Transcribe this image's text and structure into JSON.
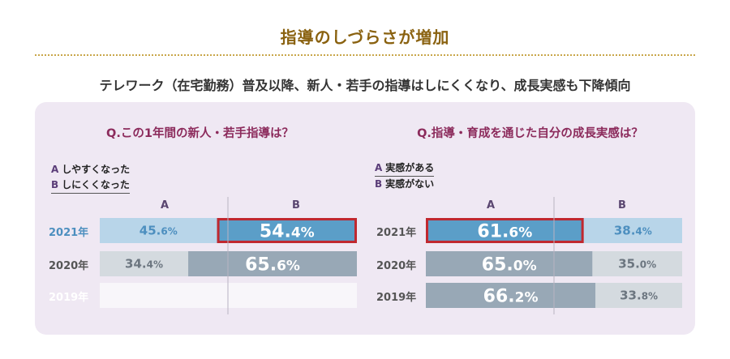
{
  "headline": "指導のしづらさが増加",
  "subhead": "テレワーク（在宅勤務）普及以降、新人・若手の指導はしにくくなり、成長実感も下降傾向",
  "chart_data": [
    {
      "type": "bar",
      "stacked": true,
      "orientation": "horizontal",
      "title": "Q.この1年間の新人・若手指導は？",
      "legend": [
        {
          "key": "A",
          "label": "しやすくなった"
        },
        {
          "key": "B",
          "label": "しにくくなった"
        }
      ],
      "columns": [
        "A",
        "B"
      ],
      "categories": [
        "2021年",
        "2020年",
        "2019年"
      ],
      "series": [
        {
          "name": "A",
          "values": [
            45.6,
            34.4,
            null
          ]
        },
        {
          "name": "B",
          "values": [
            54.4,
            65.6,
            null
          ]
        }
      ],
      "value_unit": "%",
      "highlight": {
        "category": "2021年",
        "series": "B"
      }
    },
    {
      "type": "bar",
      "stacked": true,
      "orientation": "horizontal",
      "title": "Q.指導・育成を通じた自分の成長実感は？",
      "legend": [
        {
          "key": "A",
          "label": "実感がある"
        },
        {
          "key": "B",
          "label": "実感がない"
        }
      ],
      "columns": [
        "A",
        "B"
      ],
      "categories": [
        "2021年",
        "2020年",
        "2019年"
      ],
      "series": [
        {
          "name": "A",
          "values": [
            61.6,
            65.0,
            66.2
          ]
        },
        {
          "name": "B",
          "values": [
            38.4,
            35.0,
            33.8
          ]
        }
      ],
      "value_unit": "%",
      "highlight": {
        "category": "2021年",
        "series": "A"
      }
    }
  ],
  "colors": {
    "headline": "#8a6210",
    "title": "#8c2b5c",
    "bar_2021_major": "#5b9ec8",
    "bar_2021_minor": "#b8d5e9",
    "bar_other_major": "#98a8b6",
    "bar_other_minor": "#d4dadf",
    "bar_empty": "#f8f6fa",
    "highlight_border": "#c0282f"
  }
}
